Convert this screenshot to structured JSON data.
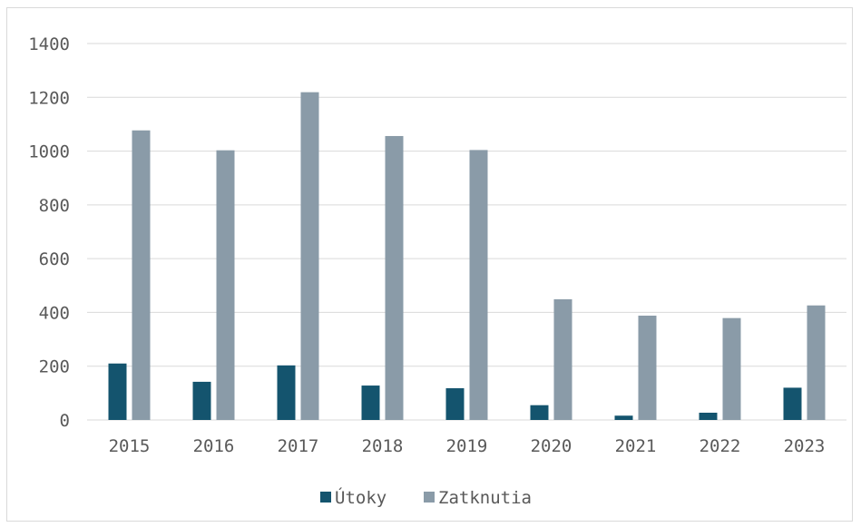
{
  "chart_data": {
    "type": "bar",
    "categories": [
      "2015",
      "2016",
      "2017",
      "2018",
      "2019",
      "2020",
      "2021",
      "2022",
      "2023"
    ],
    "series": [
      {
        "name": "Útoky",
        "color": "#14546e",
        "values": [
          210,
          142,
          203,
          128,
          118,
          55,
          16,
          27,
          120
        ]
      },
      {
        "name": "Zatknutia",
        "color": "#8a9ba8",
        "values": [
          1077,
          1003,
          1219,
          1056,
          1004,
          449,
          388,
          379,
          426
        ]
      }
    ],
    "ylim": [
      0,
      1400
    ],
    "yticks": [
      "0",
      "200",
      "400",
      "600",
      "800",
      "1000",
      "1200",
      "1400"
    ],
    "grid": true,
    "legend_position": "bottom",
    "title": "",
    "xlabel": "",
    "ylabel": ""
  }
}
